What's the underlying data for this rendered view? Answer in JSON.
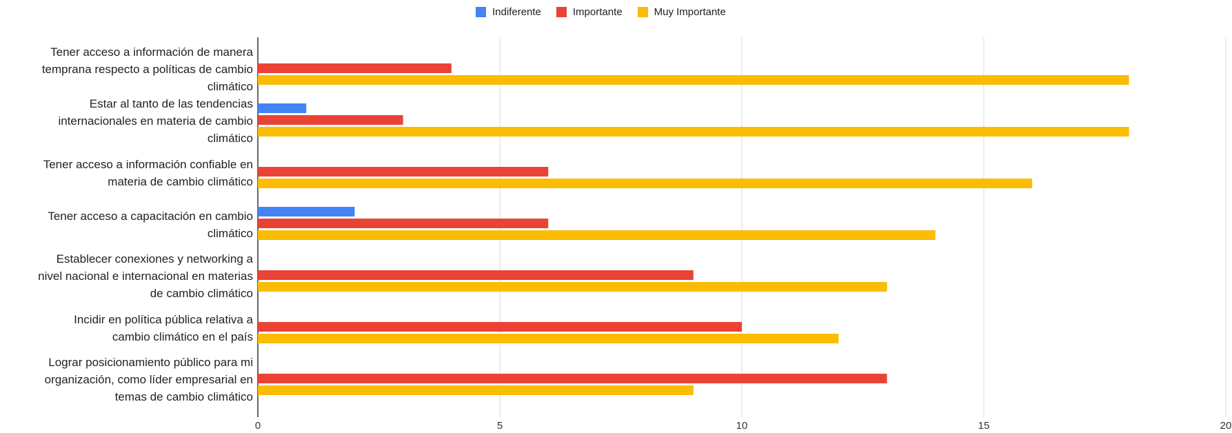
{
  "chart_data": {
    "type": "bar",
    "orientation": "horizontal",
    "categories": [
      "Tener acceso a información de manera temprana respecto a políticas de cambio climático",
      "Estar al tanto de las tendencias internacionales en materia de cambio climático",
      "Tener acceso a información confiable en materia de cambio climático",
      "Tener acceso a capacitación en cambio climático",
      "Establecer conexiones y networking a nivel nacional e internacional en materias de cambio climático",
      "Incidir en política pública relativa a cambio climático en el país",
      "Lograr posicionamiento público para mi organización, como líder empresarial en temas de cambio climático"
    ],
    "category_lines": [
      [
        "Tener acceso a información de manera",
        "temprana respecto a políticas de cambio",
        "climático"
      ],
      [
        "Estar al tanto de las tendencias",
        "internacionales en materia de cambio",
        "climático"
      ],
      [
        "Tener acceso a información confiable en",
        "materia de cambio climático"
      ],
      [
        "Tener acceso a capacitación en cambio",
        "climático"
      ],
      [
        "Establecer conexiones y networking a",
        "nivel nacional e internacional en materias",
        "de cambio climático"
      ],
      [
        "Incidir en política pública relativa a",
        "cambio climático en el país"
      ],
      [
        "Lograr posicionamiento público para mi",
        "organización, como líder empresarial en",
        "temas de cambio climático"
      ]
    ],
    "series": [
      {
        "name": "Indiferente",
        "color": "#4285f4",
        "values": [
          0,
          1,
          0,
          2,
          0,
          0,
          0
        ]
      },
      {
        "name": "Importante",
        "color": "#ea4335",
        "values": [
          4,
          3,
          6,
          6,
          9,
          10,
          13
        ]
      },
      {
        "name": "Muy Importante",
        "color": "#fbbc04",
        "values": [
          18,
          18,
          16,
          14,
          13,
          12,
          9
        ]
      }
    ],
    "xlim": [
      0,
      20
    ],
    "xticks": [
      0,
      5,
      10,
      15,
      20
    ],
    "grid": true,
    "legend_position": "top-center",
    "title": "",
    "xlabel": "",
    "ylabel": ""
  }
}
